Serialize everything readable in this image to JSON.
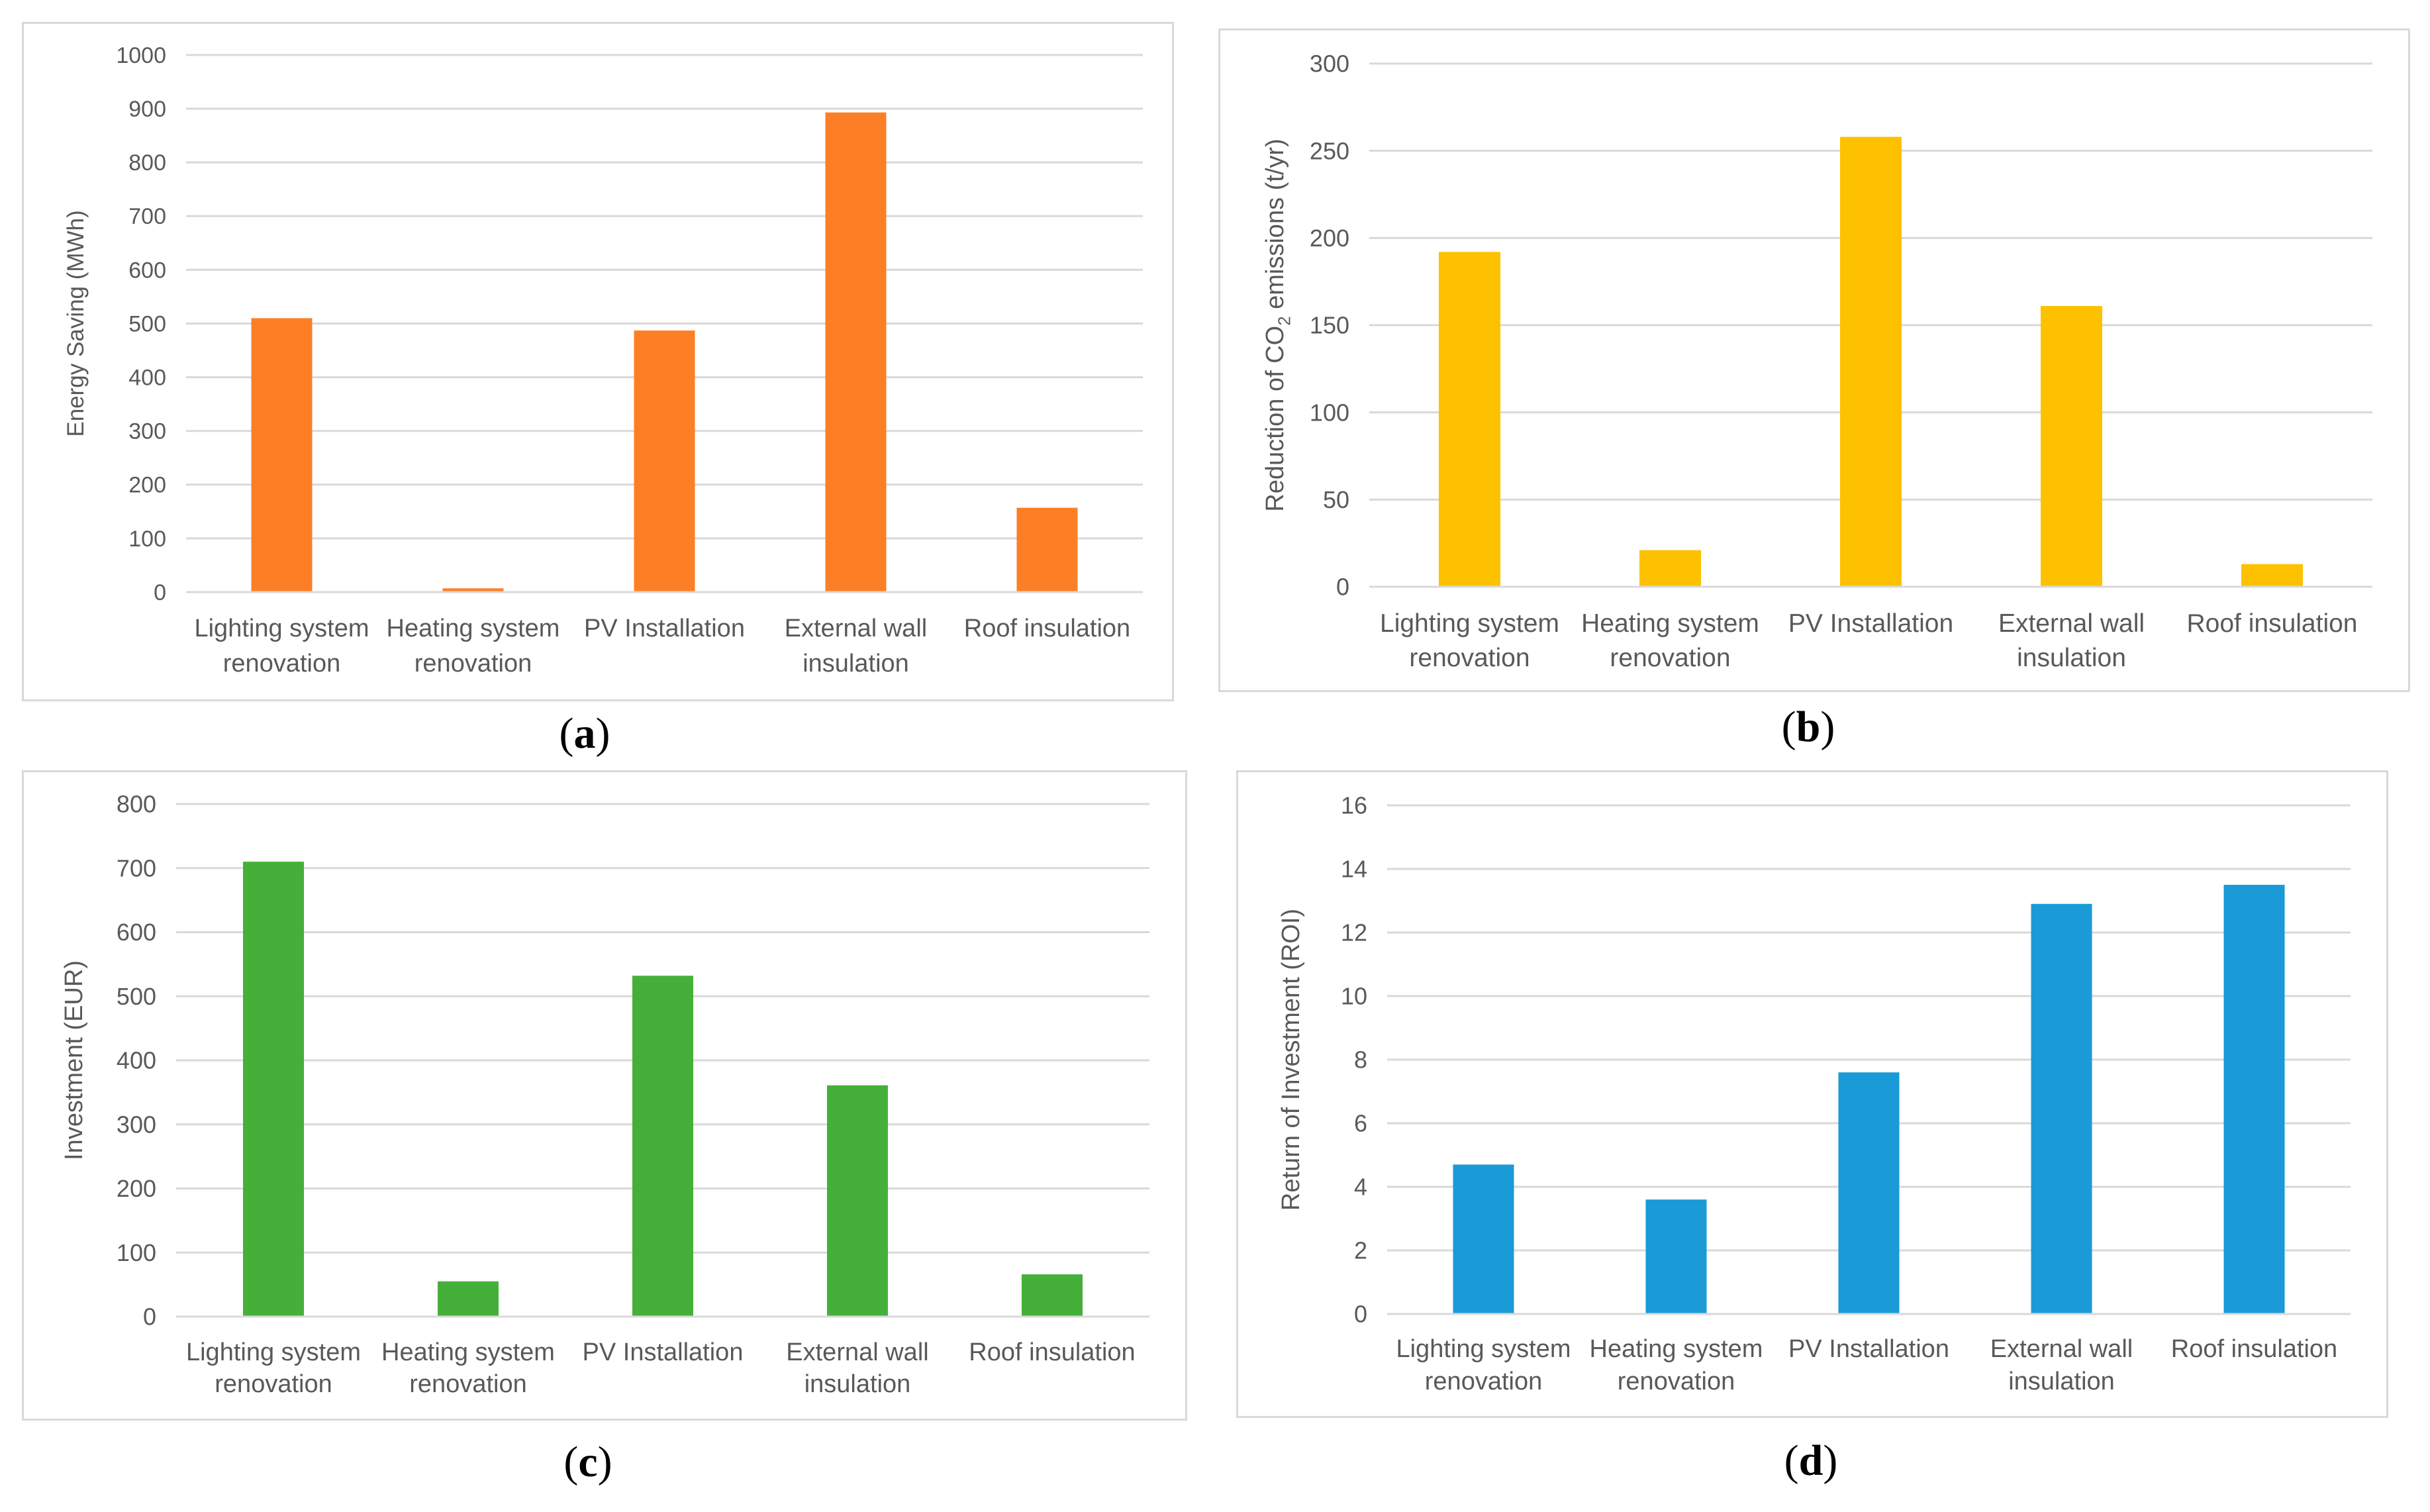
{
  "chart_data": [
    {
      "panel": "a",
      "type": "bar",
      "categories": [
        [
          "Lighting system",
          "renovation"
        ],
        [
          "Heating system",
          "renovation"
        ],
        [
          "PV Installation"
        ],
        [
          "External wall",
          "insulation"
        ],
        [
          "Roof insulation"
        ]
      ],
      "values": [
        510,
        7,
        487,
        893,
        157
      ],
      "ylabel": "Energy Saving (MWh)",
      "ylim": [
        0,
        1000
      ],
      "yticks": [
        0,
        100,
        200,
        300,
        400,
        500,
        600,
        700,
        800,
        900,
        1000
      ],
      "color": "#fd7f25",
      "grid": true
    },
    {
      "panel": "b",
      "type": "bar",
      "categories": [
        [
          "Lighting system",
          "renovation"
        ],
        [
          "Heating system",
          "renovation"
        ],
        [
          "PV Installation"
        ],
        [
          "External wall",
          "insulation"
        ],
        [
          "Roof insulation"
        ]
      ],
      "values": [
        192,
        21,
        258,
        161,
        13
      ],
      "ylabel_parts": [
        "Reduction of CO",
        "2",
        " emissions (t/yr)"
      ],
      "ylim": [
        0,
        300
      ],
      "yticks": [
        0,
        50,
        100,
        150,
        200,
        250,
        300
      ],
      "color": "#fec100",
      "grid": true
    },
    {
      "panel": "c",
      "type": "bar",
      "categories": [
        [
          "Lighting system",
          "renovation"
        ],
        [
          "Heating system",
          "renovation"
        ],
        [
          "PV Installation"
        ],
        [
          "External wall",
          "insulation"
        ],
        [
          "Roof insulation"
        ]
      ],
      "values": [
        710,
        55,
        532,
        361,
        66
      ],
      "ylabel": "Investment (EUR)",
      "ylim": [
        0,
        800
      ],
      "yticks": [
        0,
        100,
        200,
        300,
        400,
        500,
        600,
        700,
        800
      ],
      "color": "#45b039",
      "grid": true
    },
    {
      "panel": "d",
      "type": "bar",
      "categories": [
        [
          "Lighting system",
          "renovation"
        ],
        [
          "Heating system",
          "renovation"
        ],
        [
          "PV Installation"
        ],
        [
          "External wall",
          "insulation"
        ],
        [
          "Roof insulation"
        ]
      ],
      "values": [
        4.7,
        3.6,
        7.6,
        12.9,
        13.5
      ],
      "ylabel": "Return of Investment (ROI)",
      "ylim": [
        0,
        16
      ],
      "yticks": [
        0,
        2,
        4,
        6,
        8,
        10,
        12,
        14,
        16
      ],
      "color": "#1a9ad7",
      "grid": true
    }
  ],
  "captions": [
    "a",
    "b",
    "c",
    "d"
  ]
}
